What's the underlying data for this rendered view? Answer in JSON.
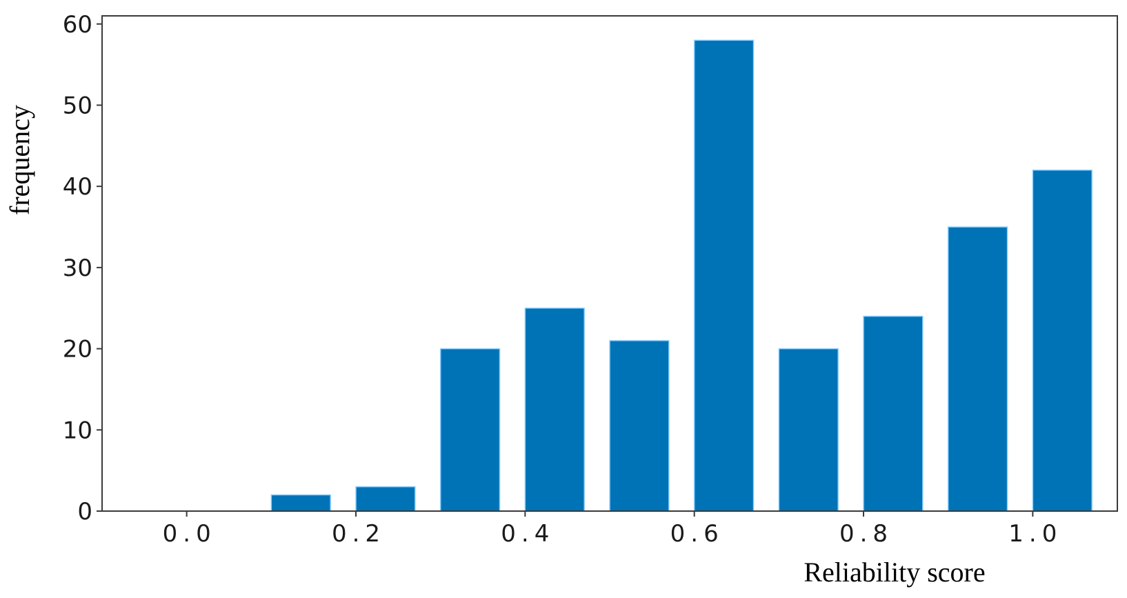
{
  "chart_data": {
    "type": "bar",
    "title": "",
    "xlabel": "Reliability score",
    "ylabel": "frequency",
    "xlim": [
      -0.1,
      1.1
    ],
    "ylim": [
      0,
      61
    ],
    "bar_color": "#0073b7",
    "grid": false,
    "xticks": [
      0.0,
      0.2,
      0.4,
      0.6,
      0.8,
      1.0
    ],
    "xtick_labels": [
      "0.0",
      "0.2",
      "0.4",
      "0.6",
      "0.8",
      "1.0"
    ],
    "yticks": [
      0,
      10,
      20,
      30,
      40,
      50,
      60
    ],
    "ytick_labels": [
      "0",
      "10",
      "20",
      "30",
      "40",
      "50",
      "60"
    ],
    "bins": [
      {
        "start": 0.0,
        "end": 0.1,
        "value": 0
      },
      {
        "start": 0.1,
        "end": 0.2,
        "value": 2
      },
      {
        "start": 0.2,
        "end": 0.3,
        "value": 3
      },
      {
        "start": 0.3,
        "end": 0.4,
        "value": 20
      },
      {
        "start": 0.4,
        "end": 0.5,
        "value": 25
      },
      {
        "start": 0.5,
        "end": 0.6,
        "value": 21
      },
      {
        "start": 0.6,
        "end": 0.7,
        "value": 58
      },
      {
        "start": 0.7,
        "end": 0.8,
        "value": 20
      },
      {
        "start": 0.8,
        "end": 0.9,
        "value": 24
      },
      {
        "start": 0.9,
        "end": 1.0,
        "value": 35
      },
      {
        "start": 1.0,
        "end": 1.1,
        "value": 42
      }
    ]
  }
}
